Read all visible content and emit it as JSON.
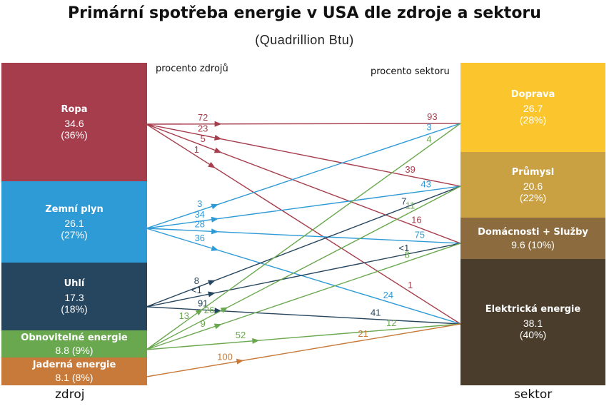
{
  "title": "Primární spotřeba energie v USA dle zdroje a sektoru",
  "subtitle": "(Quadrillion Btu)",
  "left_header": "procento zdrojů",
  "right_header": "procento sektoru",
  "left_footer": "zdroj",
  "right_footer": "sektor",
  "colors": {
    "ropa": "#a63d4c",
    "zemni_plyn": "#2f9bd6",
    "uhli": "#26455e",
    "obnovitelne": "#6aa84f",
    "jaderna": "#c77a3a",
    "doprava": "#fbc52d",
    "prumysl": "#c9a042",
    "domacnosti": "#8c6c3e",
    "elektricka": "#4a3d2c"
  },
  "sources": [
    {
      "key": "ropa",
      "name": "Ropa",
      "value": "34.6",
      "pct": "(36%)"
    },
    {
      "key": "zemni_plyn",
      "name": "Zemní plyn",
      "value": "26.1",
      "pct": "(27%)"
    },
    {
      "key": "uhli",
      "name": "Uhlí",
      "value": "17.3",
      "pct": "(18%)"
    },
    {
      "key": "obnovitelne",
      "name": "Obnovitelné energie",
      "value_pct": "8.8 (9%)"
    },
    {
      "key": "jaderna",
      "name": "Jaderná energie",
      "value_pct": "8.1 (8%)"
    }
  ],
  "sectors": [
    {
      "key": "doprava",
      "name": "Doprava",
      "value": "26.7",
      "pct": "(28%)"
    },
    {
      "key": "prumysl",
      "name": "Průmysl",
      "value": "20.6",
      "pct": "(22%)"
    },
    {
      "key": "domacnosti",
      "name": "Domácnosti + Služby",
      "value_pct": "9.6 (10%)"
    },
    {
      "key": "elektricka",
      "name": "Elektrická energie",
      "value": "38.1",
      "pct": "(40%)"
    }
  ],
  "flows": [
    {
      "source": "ropa",
      "sector": "doprava",
      "source_pct": "72",
      "sector_pct": "93"
    },
    {
      "source": "ropa",
      "sector": "prumysl",
      "source_pct": "23",
      "sector_pct": "39"
    },
    {
      "source": "ropa",
      "sector": "domacnosti",
      "source_pct": "5",
      "sector_pct": "16"
    },
    {
      "source": "ropa",
      "sector": "elektricka",
      "source_pct": "1",
      "sector_pct": "1"
    },
    {
      "source": "zemni_plyn",
      "sector": "doprava",
      "source_pct": "3",
      "sector_pct": "3"
    },
    {
      "source": "zemni_plyn",
      "sector": "prumysl",
      "source_pct": "34",
      "sector_pct": "43"
    },
    {
      "source": "zemni_plyn",
      "sector": "domacnosti",
      "source_pct": "28",
      "sector_pct": "75"
    },
    {
      "source": "zemni_plyn",
      "sector": "elektricka",
      "source_pct": "36",
      "sector_pct": "24"
    },
    {
      "source": "uhli",
      "sector": "prumysl",
      "source_pct": "8",
      "sector_pct": "7"
    },
    {
      "source": "uhli",
      "sector": "domacnosti",
      "source_pct": "<1",
      "sector_pct": "<1"
    },
    {
      "source": "uhli",
      "sector": "elektricka",
      "source_pct": "91",
      "sector_pct": "41"
    },
    {
      "source": "obnovitelne",
      "sector": "doprava",
      "source_pct": "13",
      "sector_pct": "4"
    },
    {
      "source": "obnovitelne",
      "sector": "prumysl",
      "source_pct": "26",
      "sector_pct": "11"
    },
    {
      "source": "obnovitelne",
      "sector": "domacnosti",
      "source_pct": "9",
      "sector_pct": "8"
    },
    {
      "source": "obnovitelne",
      "sector": "elektricka",
      "source_pct": "52",
      "sector_pct": "12"
    },
    {
      "source": "jaderna",
      "sector": "elektricka",
      "source_pct": "100",
      "sector_pct": "21"
    }
  ]
}
